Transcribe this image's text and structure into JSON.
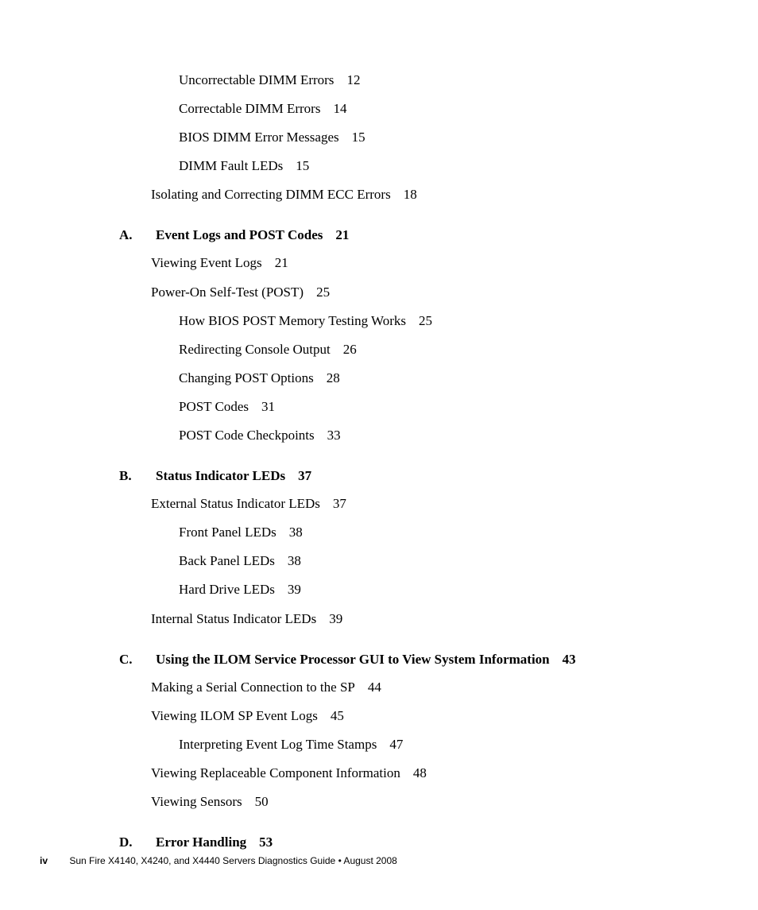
{
  "text_color": "#000000",
  "background_color": "#ffffff",
  "body_fontsize_pt": 13,
  "footer_fontsize_pt": 9,
  "pre_entries": [
    {
      "title": "Uncorrectable DIMM Errors",
      "page": "12",
      "indent": 2
    },
    {
      "title": "Correctable DIMM Errors",
      "page": "14",
      "indent": 2
    },
    {
      "title": "BIOS DIMM Error Messages",
      "page": "15",
      "indent": 2
    },
    {
      "title": "DIMM Fault LEDs",
      "page": "15",
      "indent": 2
    },
    {
      "title": "Isolating and Correcting DIMM ECC Errors",
      "page": "18",
      "indent": 1
    }
  ],
  "sections": [
    {
      "letter": "A.",
      "title": "Event Logs and POST Codes",
      "page": "21",
      "entries": [
        {
          "title": "Viewing Event Logs",
          "page": "21",
          "indent": 1
        },
        {
          "title": "Power-On Self-Test (POST)",
          "page": "25",
          "indent": 1
        },
        {
          "title": "How BIOS POST Memory Testing Works",
          "page": "25",
          "indent": 2
        },
        {
          "title": "Redirecting Console Output",
          "page": "26",
          "indent": 2
        },
        {
          "title": "Changing POST Options",
          "page": "28",
          "indent": 2
        },
        {
          "title": "POST Codes",
          "page": "31",
          "indent": 2
        },
        {
          "title": "POST Code Checkpoints",
          "page": "33",
          "indent": 2
        }
      ]
    },
    {
      "letter": "B.",
      "title": "Status Indicator LEDs",
      "page": "37",
      "entries": [
        {
          "title": "External Status Indicator LEDs",
          "page": "37",
          "indent": 1
        },
        {
          "title": "Front Panel LEDs",
          "page": "38",
          "indent": 2
        },
        {
          "title": "Back Panel LEDs",
          "page": "38",
          "indent": 2
        },
        {
          "title": "Hard Drive LEDs",
          "page": "39",
          "indent": 2
        },
        {
          "title": "Internal Status Indicator LEDs",
          "page": "39",
          "indent": 1
        }
      ]
    },
    {
      "letter": "C.",
      "title": "Using the ILOM Service Processor GUI to View System Information",
      "page": "43",
      "entries": [
        {
          "title": "Making a Serial Connection to the SP",
          "page": "44",
          "indent": 1
        },
        {
          "title": "Viewing ILOM SP Event Logs",
          "page": "45",
          "indent": 1
        },
        {
          "title": "Interpreting Event Log Time Stamps",
          "page": "47",
          "indent": 2
        },
        {
          "title": "Viewing Replaceable Component Information",
          "page": "48",
          "indent": 1
        },
        {
          "title": "Viewing Sensors",
          "page": "50",
          "indent": 1
        }
      ]
    },
    {
      "letter": "D.",
      "title": "Error Handling",
      "page": "53",
      "entries": []
    }
  ],
  "footer": {
    "pagenum": "iv",
    "text": "Sun Fire X4140, X4240, and X4440 Servers Diagnostics Guide • August 2008"
  }
}
